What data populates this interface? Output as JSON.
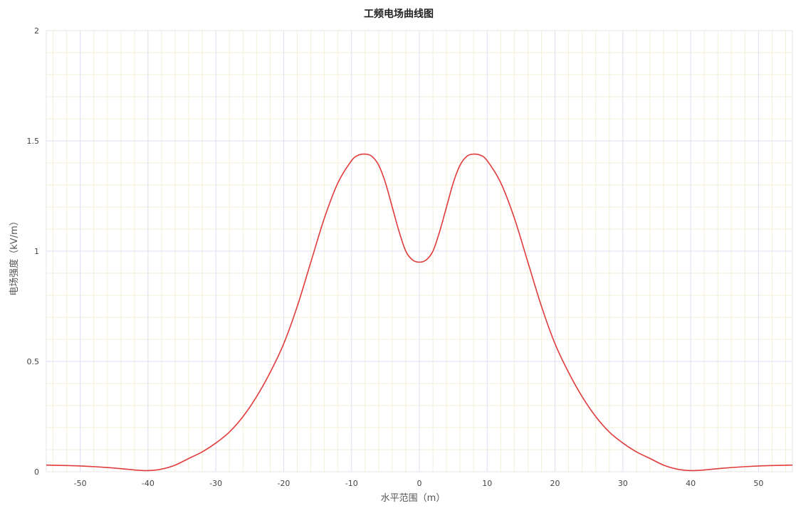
{
  "chart_data": {
    "type": "line",
    "title": "工频电场曲线图",
    "xlabel": "水平范围（m）",
    "ylabel": "电场强度（kV/m）",
    "xlim": [
      -55,
      55
    ],
    "ylim": [
      0,
      2
    ],
    "x_ticks": [
      -50,
      -40,
      -30,
      -20,
      -10,
      0,
      10,
      20,
      30,
      40,
      50
    ],
    "y_ticks": [
      0,
      0.5,
      1,
      1.5,
      2
    ],
    "y_tick_labels": [
      "0",
      "0.5",
      "1",
      "1.5",
      "2"
    ],
    "grid": true,
    "colors": {
      "line": "#e03c3c",
      "major_grid": "#dcdff0",
      "minor_grid": "#f3efd8",
      "frame": "#e6e6e6"
    },
    "series": [
      {
        "x": [
          -55,
          -52,
          -50,
          -48,
          -46,
          -44,
          -42,
          -40,
          -38,
          -36,
          -34,
          -32,
          -30,
          -28,
          -26,
          -24,
          -22,
          -20,
          -18,
          -16,
          -14,
          -12,
          -10,
          -9,
          -8,
          -7,
          -6,
          -5,
          -4,
          -3,
          -2,
          -1,
          0,
          1,
          2,
          3,
          4,
          5,
          6,
          7,
          8,
          9,
          10,
          12,
          14,
          16,
          18,
          20,
          22,
          24,
          26,
          28,
          30,
          32,
          34,
          36,
          38,
          40,
          42,
          44,
          46,
          48,
          50,
          52,
          55
        ],
        "y": [
          0.03,
          0.028,
          0.026,
          0.023,
          0.019,
          0.014,
          0.008,
          0.005,
          0.012,
          0.03,
          0.06,
          0.09,
          0.13,
          0.18,
          0.25,
          0.34,
          0.45,
          0.58,
          0.75,
          0.95,
          1.15,
          1.31,
          1.41,
          1.435,
          1.44,
          1.43,
          1.39,
          1.31,
          1.2,
          1.09,
          1.0,
          0.96,
          0.95,
          0.96,
          1.0,
          1.09,
          1.2,
          1.31,
          1.39,
          1.43,
          1.44,
          1.435,
          1.41,
          1.31,
          1.15,
          0.95,
          0.75,
          0.58,
          0.45,
          0.34,
          0.25,
          0.18,
          0.13,
          0.09,
          0.06,
          0.03,
          0.012,
          0.005,
          0.008,
          0.014,
          0.019,
          0.023,
          0.026,
          0.028,
          0.03
        ]
      }
    ]
  }
}
